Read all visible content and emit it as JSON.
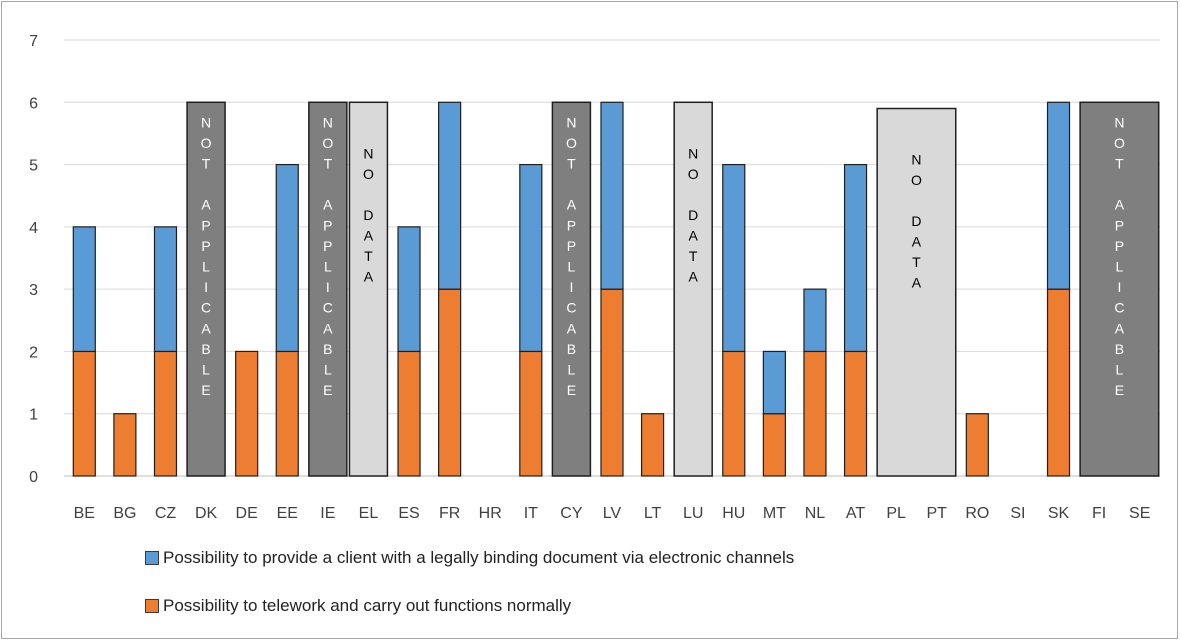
{
  "chart_data": {
    "type": "bar",
    "stacked": true,
    "categories": [
      "BE",
      "BG",
      "CZ",
      "DK",
      "DE",
      "EE",
      "IE",
      "EL",
      "ES",
      "FR",
      "HR",
      "IT",
      "CY",
      "LV",
      "LT",
      "LU",
      "HU",
      "MT",
      "NL",
      "AT",
      "PL",
      "PT",
      "RO",
      "SI",
      "SK",
      "FI",
      "SE"
    ],
    "series": [
      {
        "name": "Possibility to telework and carry out functions normally",
        "color": "#ed7d31",
        "values": [
          2,
          1,
          2,
          0,
          2,
          2,
          0,
          0,
          2,
          3,
          0,
          2,
          0,
          3,
          1,
          0,
          2,
          1,
          2,
          2,
          0,
          0,
          1,
          0,
          3,
          0,
          0
        ]
      },
      {
        "name": "Possibility to provide a client with a legally binding document via electronic channels",
        "color": "#5b9bd5",
        "values": [
          2,
          0,
          2,
          0,
          0,
          3,
          0,
          0,
          2,
          3,
          0,
          3,
          0,
          3,
          0,
          0,
          3,
          1,
          1,
          3,
          0,
          0,
          0,
          0,
          3,
          0,
          0
        ]
      }
    ],
    "ylim": [
      0,
      7
    ],
    "yticks": [
      0,
      1,
      2,
      3,
      4,
      5,
      6,
      7
    ],
    "grid": true,
    "legend_position": "bottom",
    "annotations": [
      {
        "categories": [
          "DK"
        ],
        "text": "NOT APPLICABLE",
        "value": 6,
        "color": "#7f7f7f",
        "text_color": "#ffffff"
      },
      {
        "categories": [
          "IE"
        ],
        "text": "NOT APPLICABLE",
        "value": 6,
        "color": "#7f7f7f",
        "text_color": "#ffffff"
      },
      {
        "categories": [
          "EL"
        ],
        "text": "NO DATA",
        "value": 6,
        "color": "#d9d9d9",
        "text_color": "#000000"
      },
      {
        "categories": [
          "CY"
        ],
        "text": "NOT APPLICABLE",
        "value": 6,
        "color": "#7f7f7f",
        "text_color": "#ffffff"
      },
      {
        "categories": [
          "LU"
        ],
        "text": "NO DATA",
        "value": 6,
        "color": "#d9d9d9",
        "text_color": "#000000"
      },
      {
        "categories": [
          "PL",
          "PT"
        ],
        "text": "NO DATA",
        "value": 5.9,
        "color": "#d9d9d9",
        "text_color": "#000000"
      },
      {
        "categories": [
          "FI",
          "SE"
        ],
        "text": "NOT APPLICABLE",
        "value": 6,
        "color": "#7f7f7f",
        "text_color": "#ffffff"
      }
    ]
  }
}
